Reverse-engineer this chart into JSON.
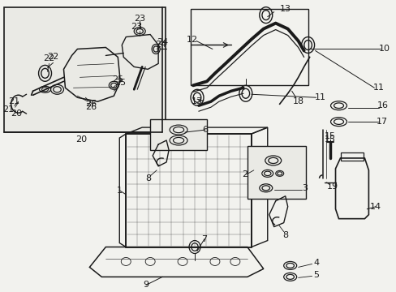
{
  "bg_color": "#f2f2ee",
  "line_color": "#1a1a1a",
  "box_fill": "#eaeae5",
  "figsize": [
    4.89,
    3.6
  ],
  "dpi": 100,
  "label_fs": 8.0
}
